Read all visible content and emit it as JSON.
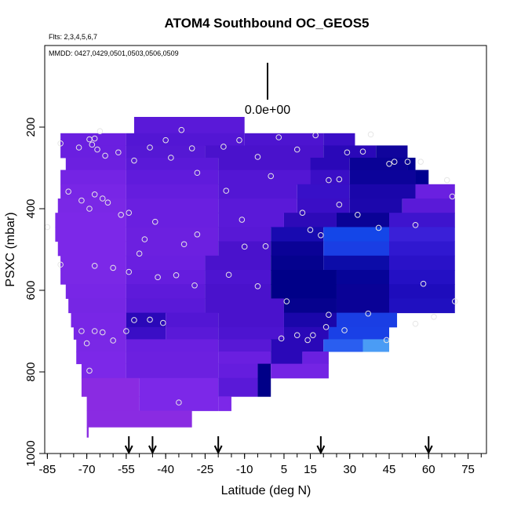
{
  "chart_data": {
    "type": "heatmap",
    "title": "ATOM4 Southbound OC_GEOS5",
    "annotations": [
      "Flts: 2,3,4,5,6,7",
      "MMDD: 0427,0429,0501,0503,0506,0509"
    ],
    "xlabel": "Latitude (deg N)",
    "ylabel": "PSXC (mbar)",
    "xlim": [
      -86,
      82
    ],
    "ylim": [
      1000,
      0
    ],
    "x_ticks": [
      -85,
      -70,
      -55,
      -40,
      -25,
      -10,
      5,
      15,
      30,
      45,
      60,
      75
    ],
    "y_ticks": [
      200,
      400,
      600,
      800,
      1000
    ],
    "scale_bar_label": "0.0e+00",
    "colors": {
      "background": "#ffffff",
      "violet": "#8a2be2",
      "indigo": "#4b0fd0",
      "navy": "#00008b",
      "blue": "#1f4fe8",
      "lightblue": "#4a9cf5",
      "circle": "#e6e6e6"
    },
    "profile_arrows_lat": [
      -54,
      -45,
      -20,
      19,
      60
    ],
    "curtain_rows": [
      {
        "p_top": 175,
        "p_bot": 215,
        "segments": [
          [
            -52,
            -10,
            "#5a19d8"
          ]
        ]
      },
      {
        "p_top": 215,
        "p_bot": 245,
        "segments": [
          [
            -80,
            -55,
            "#6a1fe0"
          ],
          [
            -55,
            -10,
            "#5316d4"
          ],
          [
            -10,
            20,
            "#4d14d0"
          ],
          [
            20,
            32,
            "#3a0ec6"
          ]
        ]
      },
      {
        "p_top": 245,
        "p_bot": 275,
        "segments": [
          [
            -80,
            -55,
            "#6a1fe0"
          ],
          [
            -55,
            -25,
            "#5518d4"
          ],
          [
            -25,
            20,
            "#4a12cc"
          ],
          [
            20,
            40,
            "#2a08b8"
          ],
          [
            40,
            52,
            "#10049c"
          ]
        ]
      },
      {
        "p_top": 275,
        "p_bot": 305,
        "segments": [
          [
            -78,
            -55,
            "#6c20e0"
          ],
          [
            -55,
            -20,
            "#5a19d8"
          ],
          [
            -20,
            15,
            "#4a12cc"
          ],
          [
            15,
            30,
            "#2a08b8"
          ],
          [
            30,
            52,
            "#0a0296"
          ],
          [
            52,
            55,
            "#000090"
          ]
        ]
      },
      {
        "p_top": 305,
        "p_bot": 340,
        "segments": [
          [
            -80,
            -55,
            "#7424e4"
          ],
          [
            -55,
            -20,
            "#601bdc"
          ],
          [
            -20,
            15,
            "#5316d4"
          ],
          [
            15,
            30,
            "#3a0ec6"
          ],
          [
            30,
            55,
            "#0c039a"
          ],
          [
            55,
            60,
            "#000090"
          ]
        ]
      },
      {
        "p_top": 340,
        "p_bot": 375,
        "segments": [
          [
            -80,
            -55,
            "#7826e6"
          ],
          [
            -55,
            -20,
            "#651dde"
          ],
          [
            -20,
            10,
            "#5316d4"
          ],
          [
            10,
            30,
            "#3810c8"
          ],
          [
            30,
            55,
            "#1a06aa"
          ],
          [
            55,
            70,
            "#6a20e0"
          ]
        ]
      },
      {
        "p_top": 375,
        "p_bot": 410,
        "segments": [
          [
            -81,
            -55,
            "#7a28e6"
          ],
          [
            -55,
            -20,
            "#6a1fe0"
          ],
          [
            -20,
            10,
            "#5a19d8"
          ],
          [
            10,
            30,
            "#3a0ec6"
          ],
          [
            30,
            50,
            "#1c07ac"
          ],
          [
            50,
            70,
            "#5a1ad8"
          ]
        ]
      },
      {
        "p_top": 410,
        "p_bot": 445,
        "segments": [
          [
            -82,
            -55,
            "#7c28e8"
          ],
          [
            -55,
            -20,
            "#6a1fe0"
          ],
          [
            -20,
            5,
            "#5a19d8"
          ],
          [
            5,
            25,
            "#2d0ab8"
          ],
          [
            25,
            45,
            "#0a0296"
          ],
          [
            45,
            70,
            "#3e14ce"
          ]
        ]
      },
      {
        "p_top": 445,
        "p_bot": 480,
        "segments": [
          [
            -82,
            -55,
            "#7c28e8"
          ],
          [
            -55,
            -20,
            "#6c20e0"
          ],
          [
            -20,
            0,
            "#5818d6"
          ],
          [
            0,
            20,
            "#180ab0"
          ],
          [
            20,
            45,
            "#1446e8"
          ],
          [
            45,
            70,
            "#3a20d8"
          ]
        ]
      },
      {
        "p_top": 480,
        "p_bot": 515,
        "segments": [
          [
            -81,
            -55,
            "#7c28e8"
          ],
          [
            -55,
            -20,
            "#6c20e0"
          ],
          [
            -20,
            0,
            "#4a12cc"
          ],
          [
            0,
            20,
            "#0a0296"
          ],
          [
            20,
            45,
            "#1a3ee4"
          ],
          [
            45,
            70,
            "#3018d0"
          ]
        ]
      },
      {
        "p_top": 515,
        "p_bot": 550,
        "segments": [
          [
            -80,
            -55,
            "#7c28e8"
          ],
          [
            -55,
            -25,
            "#6a1fe0"
          ],
          [
            -25,
            0,
            "#4a12cc"
          ],
          [
            0,
            20,
            "#05028e"
          ],
          [
            20,
            45,
            "#0c0ca8"
          ],
          [
            45,
            70,
            "#2a12c8"
          ]
        ]
      },
      {
        "p_top": 550,
        "p_bot": 585,
        "segments": [
          [
            -80,
            -55,
            "#7a28e6"
          ],
          [
            -55,
            -25,
            "#651dde"
          ],
          [
            -25,
            0,
            "#4d14d0"
          ],
          [
            0,
            25,
            "#000088"
          ],
          [
            25,
            45,
            "#060498"
          ],
          [
            45,
            70,
            "#2410c4"
          ]
        ]
      },
      {
        "p_top": 585,
        "p_bot": 620,
        "segments": [
          [
            -78,
            -55,
            "#7826e6"
          ],
          [
            -55,
            -25,
            "#5e1ada"
          ],
          [
            -25,
            0,
            "#4a12cc"
          ],
          [
            0,
            25,
            "#000088"
          ],
          [
            25,
            45,
            "#0a0296"
          ],
          [
            45,
            70,
            "#1e0cbc"
          ]
        ]
      },
      {
        "p_top": 620,
        "p_bot": 655,
        "segments": [
          [
            -77,
            -55,
            "#7626e4"
          ],
          [
            -55,
            -25,
            "#5a19d8"
          ],
          [
            -25,
            5,
            "#4a12cc"
          ],
          [
            5,
            25,
            "#06028e"
          ],
          [
            25,
            45,
            "#0a0296"
          ],
          [
            45,
            70,
            "#2010c0"
          ]
        ]
      },
      {
        "p_top": 655,
        "p_bot": 690,
        "segments": [
          [
            -76,
            -55,
            "#7826e6"
          ],
          [
            -55,
            -40,
            "#2a08b8"
          ],
          [
            -40,
            -20,
            "#5316d4"
          ],
          [
            -20,
            5,
            "#4a12cc"
          ],
          [
            5,
            25,
            "#1a06aa"
          ],
          [
            25,
            48,
            "#1a3ee4"
          ]
        ]
      },
      {
        "p_top": 690,
        "p_bot": 720,
        "segments": [
          [
            -75,
            -55,
            "#7826e6"
          ],
          [
            -55,
            -40,
            "#3a0ec6"
          ],
          [
            -40,
            -20,
            "#5a19d8"
          ],
          [
            -20,
            5,
            "#4d14d0"
          ],
          [
            5,
            22,
            "#2a08b8"
          ],
          [
            22,
            45,
            "#1a40e6"
          ]
        ]
      },
      {
        "p_top": 720,
        "p_bot": 750,
        "segments": [
          [
            -74,
            -55,
            "#7a28e6"
          ],
          [
            -55,
            -20,
            "#6a1fe0"
          ],
          [
            -20,
            0,
            "#5818d6"
          ],
          [
            0,
            20,
            "#2a08b8"
          ],
          [
            20,
            35,
            "#2a5ef0"
          ],
          [
            35,
            45,
            "#4a9cf5"
          ]
        ]
      },
      {
        "p_top": 750,
        "p_bot": 780,
        "segments": [
          [
            -74,
            -55,
            "#7c28e8"
          ],
          [
            -55,
            -20,
            "#6c20e0"
          ],
          [
            -20,
            0,
            "#6a1fe0"
          ],
          [
            0,
            12,
            "#2a08b8"
          ],
          [
            12,
            22,
            "#6a20e0"
          ]
        ]
      },
      {
        "p_top": 780,
        "p_bot": 815,
        "segments": [
          [
            -72,
            -55,
            "#7c28e8"
          ],
          [
            -55,
            -20,
            "#6c20e0"
          ],
          [
            -20,
            -5,
            "#651dde"
          ],
          [
            -5,
            0,
            "#000088"
          ],
          [
            0,
            22,
            "#7424e4"
          ]
        ]
      },
      {
        "p_top": 815,
        "p_bot": 860,
        "segments": [
          [
            -72,
            -50,
            "#8a2be2"
          ],
          [
            -50,
            -20,
            "#7c28e8"
          ],
          [
            -20,
            -5,
            "#5a19d8"
          ],
          [
            -5,
            0,
            "#000088"
          ]
        ]
      },
      {
        "p_top": 860,
        "p_bot": 895,
        "segments": [
          [
            -70,
            -50,
            "#8a2be2"
          ],
          [
            -50,
            -20,
            "#7c28e8"
          ],
          [
            -20,
            -15,
            "#7c28e8"
          ]
        ]
      },
      {
        "p_top": 895,
        "p_bot": 935,
        "segments": [
          [
            -70,
            -30,
            "#8a2be2"
          ]
        ]
      },
      {
        "p_top": 935,
        "p_bot": 960,
        "segments": [
          [
            -70,
            -69.3,
            "#8a2be2"
          ]
        ]
      }
    ],
    "sample_points": [
      [
        -80,
        240
      ],
      [
        -73,
        250
      ],
      [
        -69,
        230
      ],
      [
        -68,
        243
      ],
      [
        -67,
        228
      ],
      [
        -66,
        255
      ],
      [
        -65,
        210
      ],
      [
        -63,
        270
      ],
      [
        -58,
        262
      ],
      [
        -52,
        282
      ],
      [
        -46,
        250
      ],
      [
        -40,
        232
      ],
      [
        -38,
        275
      ],
      [
        -34,
        207
      ],
      [
        -30,
        252
      ],
      [
        -28,
        312
      ],
      [
        -18,
        248
      ],
      [
        -12,
        232
      ],
      [
        -5,
        273
      ],
      [
        0,
        320
      ],
      [
        3,
        225
      ],
      [
        10,
        255
      ],
      [
        17,
        220
      ],
      [
        22,
        330
      ],
      [
        26,
        328
      ],
      [
        29,
        262
      ],
      [
        35,
        260
      ],
      [
        38,
        218
      ],
      [
        45,
        290
      ],
      [
        52,
        285
      ],
      [
        57,
        285
      ],
      [
        67,
        330
      ],
      [
        -85,
        445
      ],
      [
        -77,
        358
      ],
      [
        -72,
        380
      ],
      [
        -69,
        400
      ],
      [
        -67,
        365
      ],
      [
        -64,
        375
      ],
      [
        -62,
        385
      ],
      [
        -57,
        415
      ],
      [
        -54,
        410
      ],
      [
        -48,
        475
      ],
      [
        -44,
        432
      ],
      [
        -33,
        487
      ],
      [
        -28,
        463
      ],
      [
        -17,
        356
      ],
      [
        -11,
        427
      ],
      [
        -2,
        492
      ],
      [
        12,
        410
      ],
      [
        15,
        452
      ],
      [
        19,
        465
      ],
      [
        26,
        390
      ],
      [
        33,
        415
      ],
      [
        41,
        447
      ],
      [
        47,
        285
      ],
      [
        55,
        440
      ],
      [
        69,
        370
      ],
      [
        -80,
        537
      ],
      [
        -67,
        540
      ],
      [
        -60,
        545
      ],
      [
        -54,
        555
      ],
      [
        -50,
        510
      ],
      [
        -43,
        568
      ],
      [
        -36,
        563
      ],
      [
        -29,
        588
      ],
      [
        -16,
        562
      ],
      [
        -10,
        493
      ],
      [
        -5,
        590
      ],
      [
        6,
        627
      ],
      [
        22,
        660
      ],
      [
        28,
        698
      ],
      [
        37,
        657
      ],
      [
        44,
        722
      ],
      [
        55,
        682
      ],
      [
        58,
        584
      ],
      [
        62,
        665
      ],
      [
        70,
        627
      ],
      [
        -72,
        700
      ],
      [
        -70,
        730
      ],
      [
        -67,
        700
      ],
      [
        -64,
        703
      ],
      [
        -60,
        723
      ],
      [
        -55,
        700
      ],
      [
        -52,
        673
      ],
      [
        -46,
        672
      ],
      [
        -41,
        680
      ],
      [
        4,
        718
      ],
      [
        10,
        710
      ],
      [
        14,
        722
      ],
      [
        21,
        690
      ],
      [
        16,
        710
      ],
      [
        -69,
        797
      ],
      [
        -35,
        875
      ]
    ]
  }
}
